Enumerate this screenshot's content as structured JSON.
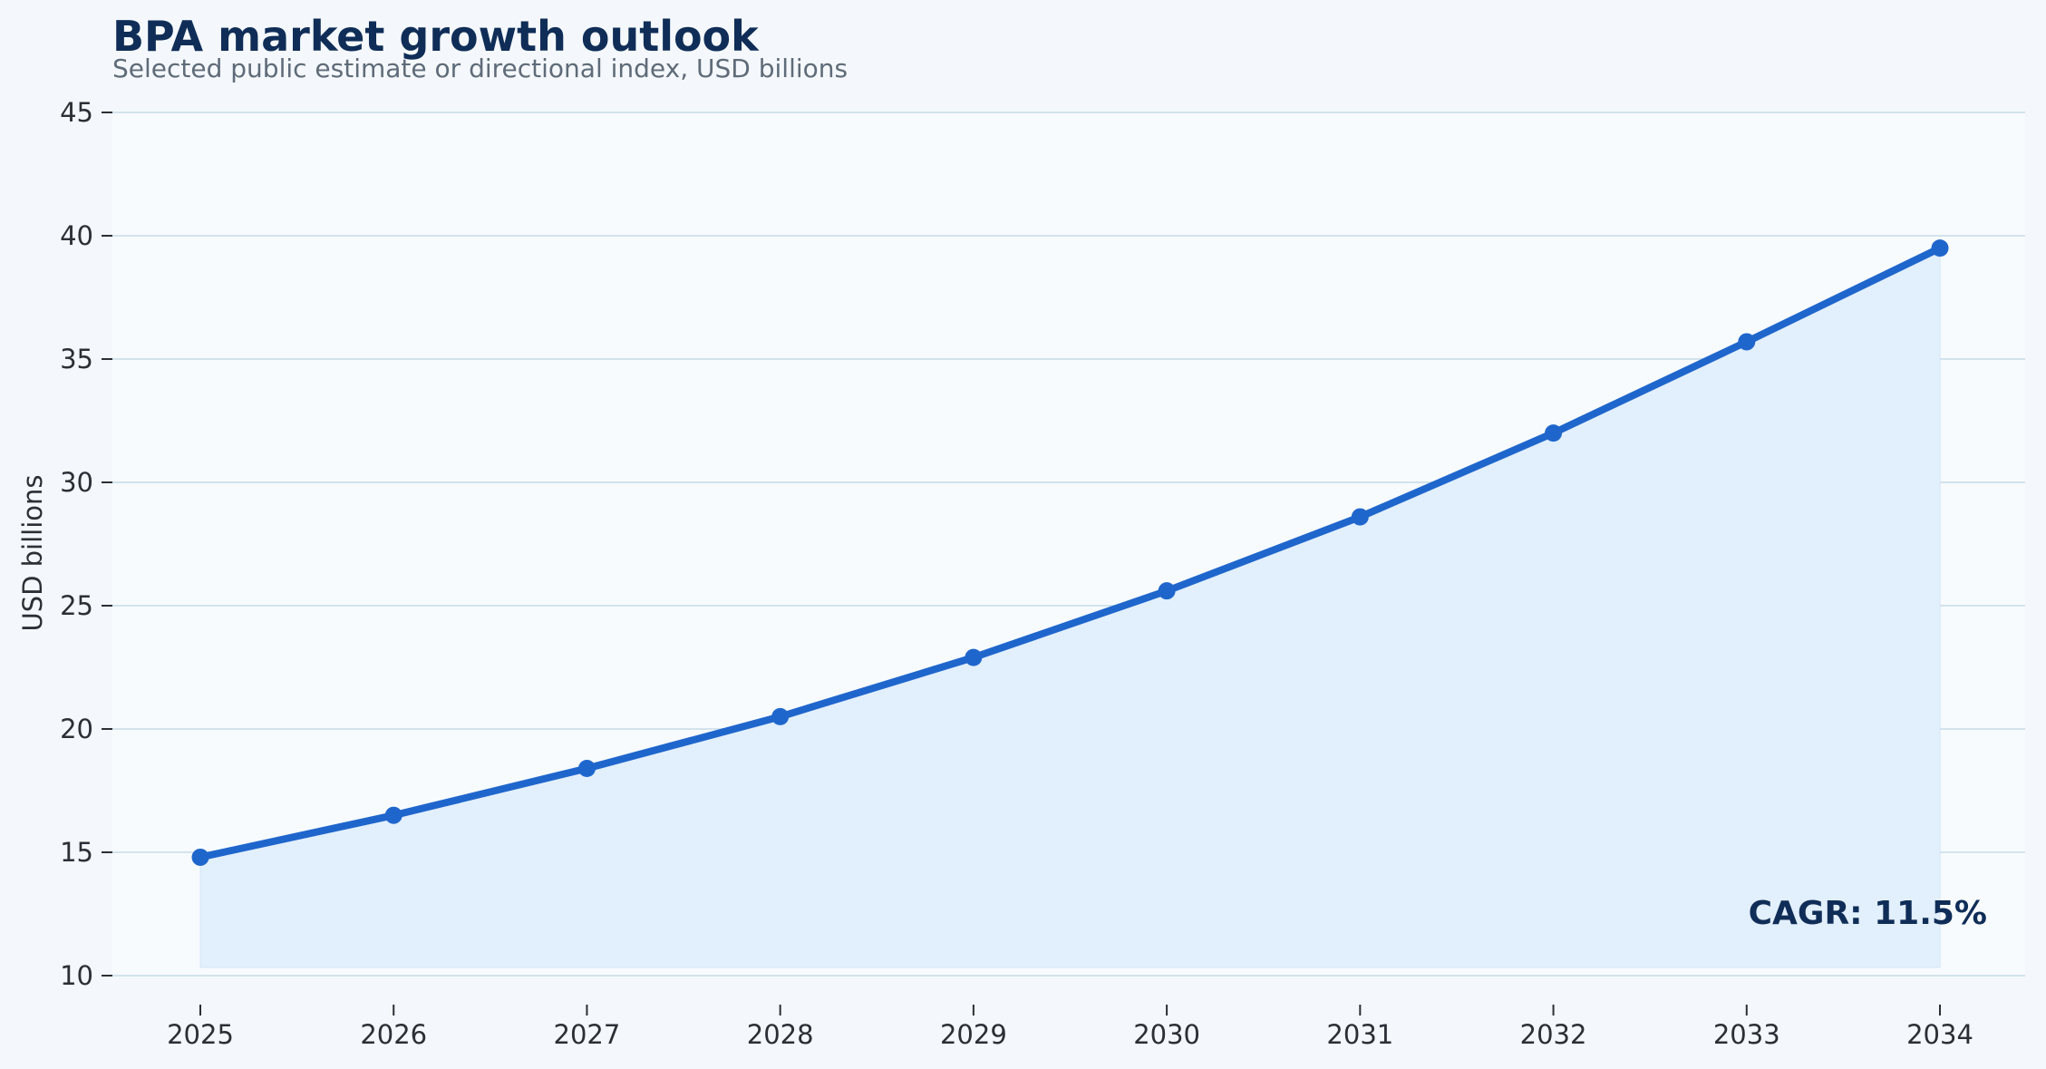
{
  "chart_data": {
    "type": "line",
    "title": "BPA market growth outlook",
    "subtitle": "Selected public estimate or directional index, USD billions",
    "xlabel": "",
    "ylabel": "USD billions",
    "x": [
      "2025",
      "2026",
      "2027",
      "2028",
      "2029",
      "2030",
      "2031",
      "2032",
      "2033",
      "2034"
    ],
    "series": [
      {
        "values": [
          14.8,
          16.5,
          18.4,
          20.5,
          22.9,
          25.6,
          28.6,
          32.0,
          35.7,
          39.5
        ]
      }
    ],
    "ylim": [
      10,
      45
    ],
    "yticks": [
      10,
      15,
      20,
      25,
      30,
      35,
      40,
      45
    ],
    "grid": true,
    "fill_under_line": true,
    "annotation": "CAGR: 11.5%",
    "colors": {
      "background": "#f4f8fc",
      "plot_background": "#f7fbfe",
      "line": "#1f66cc",
      "fill": "#e2effc",
      "grid": "#d3e3ec",
      "title": "#0f2d57"
    }
  }
}
